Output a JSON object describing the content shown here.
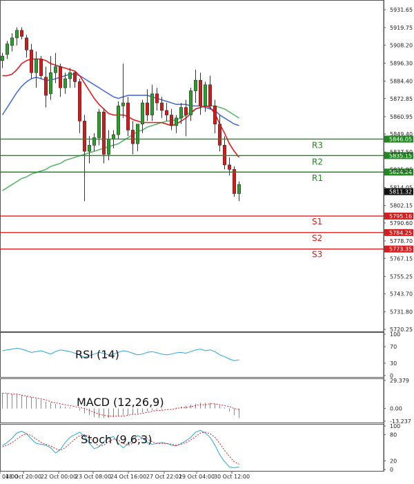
{
  "chart_data": {
    "type": "candlestick",
    "y_ticks": [
      "5931.65",
      "5919.75",
      "5908.20",
      "5896.30",
      "5884.40",
      "5872.85",
      "5860.95",
      "5849.40",
      "5837.50",
      "5825.95",
      "5814.05",
      "5802.15",
      "5790.60",
      "5778.70",
      "5767.15",
      "5755.25",
      "5743.70",
      "5731.80",
      "5720.25"
    ],
    "y_range": [
      5720.25,
      5931.65
    ],
    "x_ticks": [
      "18 Oct 04:00",
      "18 Oct 20:00",
      "22 Oct 00:00",
      "23 Oct 08:00",
      "24 Oct 16:00",
      "27 Oct 22:01",
      "29 Oct 04:00",
      "30 Oct 12:00"
    ],
    "colors": {
      "up": "#2ca02c",
      "down": "#d41a1a",
      "ma_fast": "#e11b1b",
      "ma_mid": "#4a6fd6",
      "ma_slow": "#59b86b",
      "resistance": "#1f8a1f",
      "support": "#d71d1d",
      "price_box": "#111111",
      "rsi_line": "#2aa6d8",
      "stoch_main": "#2aa6d8",
      "stoch_signal": "#e11b1b",
      "macd_signal": "#e11b1b",
      "macd_hist": "#888888"
    },
    "levels": [
      {
        "label": "R3",
        "price": 5846.05,
        "tag": "5846.05",
        "kind": "resistance"
      },
      {
        "label": "R2",
        "price": 5835.15,
        "tag": "5835.15",
        "kind": "resistance"
      },
      {
        "label": "R1",
        "price": 5824.24,
        "tag": "5824.24",
        "kind": "resistance"
      },
      {
        "label": "S1",
        "price": 5795.16,
        "tag": "5795.16",
        "kind": "support"
      },
      {
        "label": "S2",
        "price": 5784.25,
        "tag": "5784.25",
        "kind": "support"
      },
      {
        "label": "S3",
        "price": 5773.35,
        "tag": "5773.35",
        "kind": "support"
      }
    ],
    "current_price": {
      "price": 5811.32,
      "tag": "5811.32"
    },
    "candles": [
      [
        5898,
        5903,
        5893,
        5901
      ],
      [
        5902,
        5911,
        5899,
        5909
      ],
      [
        5908,
        5916,
        5904,
        5913
      ],
      [
        5913,
        5920,
        5908,
        5918
      ],
      [
        5918,
        5920,
        5912,
        5914
      ],
      [
        5913,
        5915,
        5900,
        5905
      ],
      [
        5905,
        5909,
        5886,
        5890
      ],
      [
        5890,
        5904,
        5880,
        5899
      ],
      [
        5899,
        5901,
        5886,
        5888
      ],
      [
        5887,
        5894,
        5867,
        5875
      ],
      [
        5876,
        5901,
        5872,
        5890
      ],
      [
        5890,
        5903,
        5883,
        5894
      ],
      [
        5894,
        5896,
        5874,
        5880
      ],
      [
        5880,
        5890,
        5876,
        5886
      ],
      [
        5886,
        5893,
        5880,
        5890
      ],
      [
        5890,
        5891,
        5880,
        5884
      ],
      [
        5884,
        5886,
        5850,
        5858
      ],
      [
        5858,
        5862,
        5805,
        5838
      ],
      [
        5838,
        5848,
        5830,
        5842
      ],
      [
        5842,
        5850,
        5838,
        5847
      ],
      [
        5847,
        5866,
        5842,
        5864
      ],
      [
        5864,
        5866,
        5830,
        5836
      ],
      [
        5836,
        5852,
        5832,
        5846
      ],
      [
        5846,
        5852,
        5840,
        5849
      ],
      [
        5849,
        5871,
        5846,
        5868
      ],
      [
        5868,
        5896,
        5860,
        5870
      ],
      [
        5870,
        5874,
        5848,
        5852
      ],
      [
        5852,
        5858,
        5836,
        5843
      ],
      [
        5843,
        5856,
        5838,
        5856
      ],
      [
        5856,
        5872,
        5850,
        5870
      ],
      [
        5870,
        5879,
        5858,
        5862
      ],
      [
        5862,
        5882,
        5858,
        5876
      ],
      [
        5876,
        5880,
        5865,
        5870
      ],
      [
        5870,
        5874,
        5860,
        5865
      ],
      [
        5865,
        5870,
        5858,
        5862
      ],
      [
        5862,
        5866,
        5852,
        5855
      ],
      [
        5855,
        5862,
        5850,
        5860
      ],
      [
        5860,
        5870,
        5856,
        5867
      ],
      [
        5867,
        5872,
        5848,
        5862
      ],
      [
        5862,
        5880,
        5858,
        5878
      ],
      [
        5878,
        5892,
        5870,
        5885
      ],
      [
        5885,
        5890,
        5862,
        5868
      ],
      [
        5868,
        5884,
        5864,
        5882
      ],
      [
        5882,
        5888,
        5866,
        5868
      ],
      [
        5868,
        5872,
        5850,
        5856
      ],
      [
        5856,
        5862,
        5838,
        5842
      ],
      [
        5842,
        5848,
        5826,
        5829
      ],
      [
        5829,
        5834,
        5822,
        5826
      ],
      [
        5826,
        5828,
        5808,
        5810
      ],
      [
        5810,
        5818,
        5805,
        5816
      ]
    ],
    "ma_fast": [
      5888,
      5888,
      5889,
      5892,
      5896,
      5898,
      5899,
      5899,
      5899,
      5898,
      5896,
      5895,
      5894,
      5893,
      5892,
      5891,
      5888,
      5883,
      5878,
      5873,
      5869,
      5866,
      5863,
      5862,
      5862,
      5862,
      5861,
      5859,
      5858,
      5857,
      5857,
      5857,
      5857,
      5857,
      5856,
      5855,
      5856,
      5858,
      5860,
      5863,
      5866,
      5867,
      5868,
      5867,
      5863,
      5856,
      5850,
      5843,
      5838,
      5834
    ],
    "ma_mid": [
      5862,
      5867,
      5872,
      5877,
      5881,
      5884,
      5886,
      5887,
      5886,
      5885,
      5885,
      5886,
      5887,
      5888,
      5889,
      5889,
      5888,
      5886,
      5884,
      5882,
      5880,
      5878,
      5876,
      5874,
      5873,
      5874,
      5875,
      5875,
      5875,
      5875,
      5875,
      5874,
      5873,
      5872,
      5871,
      5870,
      5869,
      5869,
      5869,
      5868,
      5868,
      5868,
      5867,
      5866,
      5865,
      5862,
      5860,
      5858,
      5856,
      5855
    ],
    "ma_slow": [
      5812,
      5814,
      5816,
      5818,
      5820,
      5821,
      5823,
      5824,
      5825,
      5826,
      5828,
      5829,
      5830,
      5832,
      5833,
      5834,
      5835,
      5836,
      5837,
      5838,
      5839,
      5840,
      5841,
      5842,
      5843,
      5845,
      5847,
      5849,
      5851,
      5852,
      5854,
      5855,
      5856,
      5857,
      5858,
      5858,
      5859,
      5860,
      5862,
      5864,
      5866,
      5867,
      5868,
      5868,
      5868,
      5867,
      5866,
      5864,
      5862,
      5860
    ],
    "rsi": {
      "label": "RSI (14)",
      "ticks": [
        "100",
        "70",
        "30",
        "0"
      ],
      "values": [
        60,
        62,
        64,
        66,
        64,
        60,
        56,
        58,
        60,
        56,
        52,
        58,
        62,
        60,
        58,
        54,
        50,
        44,
        48,
        52,
        56,
        54,
        50,
        52,
        56,
        60,
        58,
        54,
        50,
        52,
        56,
        58,
        55,
        52,
        50,
        52,
        55,
        56,
        54,
        58,
        62,
        64,
        60,
        62,
        58,
        50,
        46,
        40,
        36,
        38
      ]
    },
    "macd": {
      "label": "MACD (12,26,9)",
      "ticks": [
        "29.379",
        "0.00",
        "-13.237"
      ],
      "hist": [
        16,
        16,
        15,
        15,
        14,
        13,
        12,
        10,
        9,
        7,
        6,
        5,
        3,
        2,
        1,
        0,
        -2,
        -5,
        -7,
        -9,
        -10,
        -10,
        -10,
        -9,
        -8,
        -7,
        -7,
        -6,
        -5,
        -4,
        -3,
        -2,
        -1,
        -1,
        0,
        0,
        1,
        2,
        3,
        4,
        5,
        6,
        6,
        6,
        5,
        3,
        1,
        -3,
        -7,
        -10
      ],
      "signal": [
        16,
        16,
        15,
        15,
        14,
        13,
        12,
        11,
        10,
        9,
        7,
        6,
        5,
        4,
        3,
        2,
        1,
        0,
        -2,
        -4,
        -6,
        -7,
        -8,
        -8,
        -8,
        -8,
        -7,
        -6,
        -6,
        -5,
        -4,
        -3,
        -2,
        -2,
        -1,
        -1,
        0,
        1,
        1,
        2,
        3,
        4,
        4,
        5,
        5,
        4,
        3,
        2,
        0,
        -1
      ]
    },
    "stoch": {
      "label": "Stoch (9,6,3)",
      "ticks": [
        "100",
        "80",
        "20",
        "0"
      ],
      "main": [
        55,
        62,
        72,
        84,
        88,
        82,
        70,
        60,
        58,
        56,
        50,
        38,
        46,
        62,
        74,
        80,
        86,
        76,
        60,
        48,
        52,
        64,
        72,
        76,
        60,
        50,
        58,
        68,
        78,
        72,
        62,
        58,
        60,
        62,
        60,
        56,
        54,
        60,
        66,
        74,
        86,
        90,
        84,
        74,
        56,
        34,
        18,
        6,
        4,
        6
      ],
      "signal": [
        52,
        56,
        62,
        70,
        78,
        82,
        78,
        70,
        62,
        58,
        54,
        48,
        44,
        50,
        60,
        70,
        78,
        80,
        74,
        62,
        54,
        56,
        64,
        70,
        68,
        60,
        56,
        60,
        68,
        72,
        70,
        64,
        60,
        60,
        60,
        58,
        56,
        58,
        62,
        68,
        76,
        84,
        86,
        82,
        74,
        60,
        44,
        30,
        18,
        12
      ]
    }
  }
}
